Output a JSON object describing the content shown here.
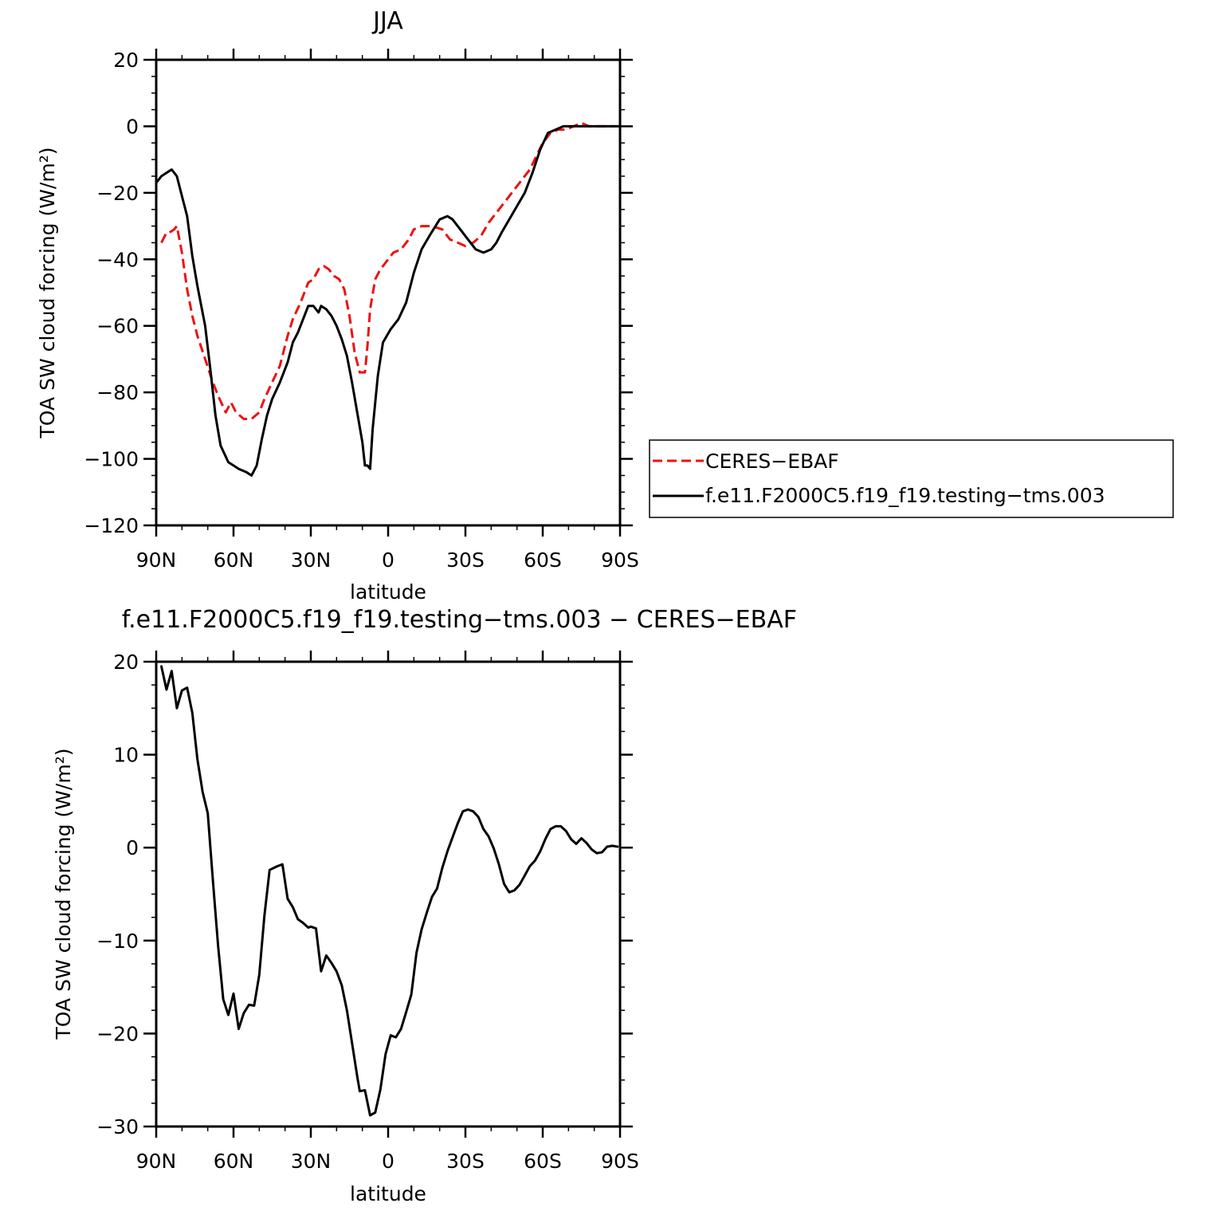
{
  "colors": {
    "observation": "#ee1111",
    "model": "#000000",
    "axis": "#000000",
    "background": "#ffffff"
  },
  "chart_data": [
    {
      "type": "line",
      "title": "JJA",
      "xlabel": "latitude",
      "ylabel": "TOA SW cloud forcing (W/m²)",
      "xlim": [
        90,
        -90
      ],
      "ylim": [
        -120,
        20
      ],
      "xticks": [
        90,
        60,
        30,
        0,
        -30,
        -60,
        -90
      ],
      "xtick_labels": [
        "90N",
        "60N",
        "30N",
        "0",
        "30S",
        "60S",
        "90S"
      ],
      "yticks": [
        20,
        0,
        -20,
        -40,
        -60,
        -80,
        -100,
        -120
      ],
      "ytick_labels": [
        "20",
        "0",
        "−20",
        "−40",
        "−60",
        "−80",
        "−100",
        "−120"
      ],
      "legend": {
        "placement": "right",
        "entries": [
          "CERES−EBAF",
          "f.e11.F2000C5.f19_f19.testing−tms.003"
        ]
      },
      "series": [
        {
          "name": "CERES−EBAF",
          "style": "dashed",
          "color": "#ee1111",
          "x": [
            88,
            86,
            85,
            83,
            82,
            80,
            78,
            76,
            74,
            71,
            68,
            66,
            63,
            61,
            59,
            56,
            53,
            50,
            48,
            45,
            42,
            39,
            37,
            34,
            31,
            29,
            27,
            25,
            23,
            21,
            19,
            17,
            15,
            13,
            11,
            9,
            8,
            7,
            5,
            3,
            1,
            -2,
            -5,
            -8,
            -10,
            -13,
            -17,
            -21,
            -24,
            -27,
            -30,
            -33,
            -36,
            -39,
            -42,
            -45,
            -50,
            -55,
            -60,
            -63,
            -66,
            -69,
            -72,
            -75,
            -78,
            -81,
            -85,
            -88
          ],
          "y": [
            -35,
            -32,
            -32,
            -31,
            -30,
            -38,
            -49,
            -57,
            -63,
            -70,
            -77,
            -81,
            -86,
            -83,
            -86,
            -88,
            -88,
            -86,
            -82,
            -77,
            -72,
            -63,
            -58,
            -53,
            -47,
            -46,
            -43,
            -42,
            -43,
            -45,
            -46,
            -49,
            -57,
            -68,
            -74,
            -74,
            -66,
            -55,
            -46,
            -43,
            -41,
            -38,
            -37,
            -34,
            -31,
            -30,
            -30,
            -31,
            -34,
            -35,
            -36,
            -35,
            -33,
            -29,
            -26,
            -23,
            -18,
            -13,
            -5,
            -2,
            -1,
            -1,
            0,
            1,
            0,
            0,
            0,
            0
          ]
        },
        {
          "name": "f.e11.F2000C5.f19_f19.testing−tms.003",
          "style": "solid",
          "color": "#000000",
          "x": [
            90,
            88,
            86,
            84,
            82,
            80,
            78,
            76,
            74,
            71,
            69,
            67,
            65,
            62,
            60,
            58,
            55,
            53,
            51,
            49,
            47,
            45,
            42,
            39,
            37,
            35,
            33,
            31,
            29,
            27,
            26,
            24,
            22,
            20,
            18,
            16,
            14,
            12,
            10,
            9,
            8,
            7,
            6,
            4,
            2,
            -1,
            -4,
            -7,
            -10,
            -13,
            -16,
            -20,
            -23,
            -25,
            -28,
            -31,
            -34,
            -37,
            -40,
            -42,
            -44,
            -47,
            -50,
            -53,
            -56,
            -59,
            -62,
            -65,
            -68,
            -70,
            -73,
            -76,
            -80,
            -85,
            -90
          ],
          "y": [
            -17,
            -15,
            -14,
            -13,
            -15,
            -21,
            -27,
            -39,
            -48,
            -60,
            -73,
            -87,
            -96,
            -101,
            -102,
            -103,
            -104,
            -105,
            -102,
            -94,
            -87,
            -82,
            -77,
            -71,
            -65,
            -62,
            -58,
            -54,
            -54,
            -56,
            -54,
            -55,
            -57,
            -60,
            -64,
            -69,
            -77,
            -86,
            -95,
            -102,
            -102,
            -103,
            -91,
            -75,
            -65,
            -61,
            -58,
            -53,
            -44,
            -37,
            -33,
            -28,
            -27,
            -28,
            -31,
            -34,
            -37,
            -38,
            -37,
            -35,
            -32,
            -28,
            -24,
            -20,
            -14,
            -7,
            -2,
            -1,
            0,
            0,
            0,
            0,
            0,
            0,
            0
          ]
        }
      ]
    },
    {
      "type": "line",
      "title": "f.e11.F2000C5.f19_f19.testing−tms.003 − CERES−EBAF",
      "xlabel": "latitude",
      "ylabel": "TOA SW cloud forcing (W/m²)",
      "xlim": [
        90,
        -90
      ],
      "ylim": [
        -30,
        20
      ],
      "xticks": [
        90,
        60,
        30,
        0,
        -30,
        -60,
        -90
      ],
      "xtick_labels": [
        "90N",
        "60N",
        "30N",
        "0",
        "30S",
        "60S",
        "90S"
      ],
      "yticks": [
        20,
        10,
        0,
        -10,
        -20,
        -30
      ],
      "ytick_labels": [
        "20",
        "10",
        "0",
        "−10",
        "−20",
        "−30"
      ],
      "series": [
        {
          "style": "solid",
          "color": "#000000",
          "x": [
            88,
            86,
            84,
            82,
            80,
            78,
            76,
            74,
            72,
            70,
            68,
            66,
            64,
            62,
            60,
            58,
            56,
            54,
            52,
            50,
            48,
            46,
            43,
            41,
            39,
            37,
            35,
            33,
            31,
            30,
            28,
            26,
            24,
            22,
            20,
            18,
            16,
            14,
            12,
            11,
            9,
            7,
            5,
            3,
            1,
            -1,
            -3,
            -5,
            -7,
            -9,
            -11,
            -13,
            -15,
            -17,
            -19,
            -21,
            -23,
            -25,
            -27,
            -29,
            -31,
            -33,
            -35,
            -37,
            -39,
            -41,
            -43,
            -45,
            -47,
            -49,
            -51,
            -53,
            -55,
            -57,
            -59,
            -61,
            -63,
            -65,
            -67,
            -69,
            -71,
            -73,
            -75,
            -77,
            -79,
            -81,
            -83,
            -85,
            -87,
            -89
          ],
          "y": [
            19.5,
            17,
            19,
            15,
            16.9,
            17.2,
            14.5,
            9.5,
            6,
            3.7,
            -3.5,
            -10.5,
            -16.3,
            -18,
            -15.7,
            -19.5,
            -17.8,
            -16.9,
            -17,
            -13.7,
            -7.3,
            -2.4,
            -2,
            -1.8,
            -5.5,
            -6.4,
            -7.7,
            -8.1,
            -8.6,
            -8.5,
            -8.7,
            -13.3,
            -11.6,
            -12.4,
            -13.3,
            -14.8,
            -17.5,
            -21,
            -24.6,
            -26.2,
            -26.1,
            -28.8,
            -28.5,
            -26,
            -22.2,
            -20.2,
            -20.4,
            -19.5,
            -17.7,
            -15.8,
            -11.3,
            -8.8,
            -7,
            -5.3,
            -4.4,
            -2.2,
            -0.4,
            1.1,
            2.6,
            3.9,
            4.1,
            3.9,
            3.3,
            2,
            1.2,
            -0.1,
            -1.8,
            -3.9,
            -4.8,
            -4.6,
            -4,
            -3,
            -2,
            -1.4,
            -0.4,
            0.9,
            2,
            2.3,
            2.3,
            1.8,
            0.9,
            0.4,
            1,
            0.5,
            -0.2,
            -0.6,
            -0.5,
            0.1,
            0.2,
            0.1
          ]
        }
      ]
    }
  ]
}
